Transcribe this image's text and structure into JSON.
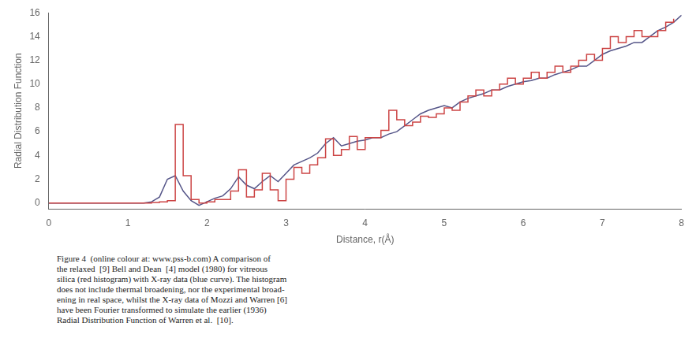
{
  "chart_data": {
    "type": "line",
    "xlabel": "Distance, r(Å)",
    "ylabel": "Radial Distribution Function",
    "xlim": [
      0,
      8
    ],
    "ylim": [
      -0.5,
      16
    ],
    "xticks": [
      0,
      1,
      2,
      3,
      4,
      5,
      6,
      7,
      8
    ],
    "yticks": [
      0,
      2,
      4,
      6,
      8,
      10,
      12,
      14,
      16
    ],
    "grid": false,
    "caption": "Figure 4  (online colour at: www.pss-b.com) A comparison of\nthe relaxed  [9] Bell and Dean  [4] model (1980) for vitreous\nsilica (red histogram) with X-ray data (blue curve). The histogram\ndoes not include thermal broadening, nor the experimental broad-\nening in real space, whilst the X-ray data of Mozzi and Warren [6]\nhave been Fourier transformed to simulate the earlier (1936)\nRadial Distribution Function of Warren et al.  [10].",
    "series": [
      {
        "color": "#cc4444",
        "line_style": "steps",
        "x": [
          0.0,
          0.1,
          0.2,
          0.3,
          0.4,
          0.5,
          0.6,
          0.7,
          0.8,
          0.9,
          1.0,
          1.1,
          1.2,
          1.3,
          1.4,
          1.5,
          1.6,
          1.7,
          1.8,
          1.9,
          2.0,
          2.1,
          2.2,
          2.3,
          2.4,
          2.5,
          2.6,
          2.7,
          2.8,
          2.9,
          3.0,
          3.1,
          3.2,
          3.3,
          3.4,
          3.5,
          3.6,
          3.7,
          3.8,
          3.9,
          4.0,
          4.1,
          4.2,
          4.3,
          4.4,
          4.5,
          4.6,
          4.7,
          4.8,
          4.9,
          5.0,
          5.1,
          5.2,
          5.3,
          5.4,
          5.5,
          5.6,
          5.7,
          5.8,
          5.9,
          6.0,
          6.1,
          6.2,
          6.3,
          6.4,
          6.5,
          6.6,
          6.7,
          6.8,
          6.9,
          7.0,
          7.1,
          7.2,
          7.3,
          7.4,
          7.5,
          7.6,
          7.7,
          7.8,
          7.9
        ],
        "values": [
          0.0,
          0.0,
          0.0,
          0.0,
          0.0,
          0.0,
          0.0,
          0.0,
          0.0,
          0.0,
          0.0,
          0.0,
          0.0,
          0.05,
          0.1,
          0.2,
          6.6,
          2.3,
          0.3,
          0.0,
          0.1,
          0.3,
          0.3,
          1.0,
          2.8,
          0.5,
          1.1,
          2.5,
          1.1,
          0.2,
          2.0,
          3.0,
          2.5,
          3.2,
          3.8,
          5.4,
          4.0,
          4.5,
          5.6,
          4.5,
          5.5,
          5.5,
          6.1,
          7.8,
          7.0,
          6.5,
          6.8,
          7.3,
          7.2,
          7.5,
          8.0,
          7.8,
          8.5,
          9.0,
          9.5,
          9.0,
          9.5,
          10.0,
          10.5,
          10.0,
          10.5,
          11.0,
          10.5,
          11.0,
          11.5,
          11.0,
          11.5,
          12.0,
          12.5,
          12.0,
          13.0,
          14.0,
          13.5,
          14.0,
          14.5,
          14.0,
          14.0,
          14.5,
          15.2,
          15.5
        ]
      },
      {
        "color": "#555588",
        "line_style": "solid",
        "x": [
          0.0,
          0.2,
          0.4,
          0.6,
          0.8,
          1.0,
          1.2,
          1.3,
          1.4,
          1.5,
          1.6,
          1.7,
          1.8,
          1.9,
          2.0,
          2.1,
          2.2,
          2.3,
          2.4,
          2.5,
          2.6,
          2.7,
          2.8,
          2.9,
          3.0,
          3.1,
          3.2,
          3.3,
          3.4,
          3.5,
          3.6,
          3.7,
          3.8,
          3.9,
          4.0,
          4.1,
          4.2,
          4.3,
          4.4,
          4.5,
          4.6,
          4.7,
          4.8,
          4.9,
          5.0,
          5.1,
          5.2,
          5.3,
          5.4,
          5.5,
          5.6,
          5.7,
          5.8,
          5.9,
          6.0,
          6.1,
          6.2,
          6.3,
          6.4,
          6.5,
          6.6,
          6.7,
          6.8,
          6.9,
          7.0,
          7.1,
          7.2,
          7.3,
          7.4,
          7.5,
          7.6,
          7.7,
          7.8,
          7.9,
          8.0
        ],
        "values": [
          0.0,
          0.0,
          0.0,
          0.0,
          0.0,
          0.0,
          0.0,
          0.1,
          0.5,
          2.0,
          2.3,
          1.0,
          0.2,
          -0.2,
          0.1,
          0.4,
          0.6,
          1.2,
          2.2,
          1.5,
          1.2,
          1.8,
          2.3,
          1.8,
          2.5,
          3.2,
          3.5,
          3.8,
          4.2,
          5.0,
          5.5,
          4.8,
          5.0,
          5.2,
          5.3,
          5.5,
          5.5,
          5.8,
          6.0,
          6.5,
          7.0,
          7.5,
          7.8,
          8.0,
          8.2,
          8.0,
          8.5,
          8.8,
          9.0,
          9.2,
          9.5,
          9.5,
          9.8,
          10.0,
          10.2,
          10.3,
          10.5,
          10.5,
          10.8,
          11.0,
          11.2,
          11.5,
          11.5,
          12.0,
          12.5,
          12.8,
          13.0,
          13.2,
          13.5,
          13.5,
          14.0,
          14.5,
          14.8,
          15.2,
          15.8
        ]
      }
    ]
  }
}
